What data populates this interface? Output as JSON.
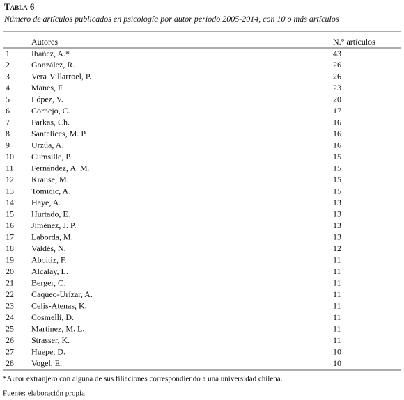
{
  "header": {
    "title": "Tabla 6",
    "subtitle": "Número de artículos publicados en psicología por autor periodo 2005-2014, con 10 o más artículos"
  },
  "table": {
    "columns": [
      "Autores",
      "N.° artículos"
    ],
    "rows": [
      [
        1,
        "Ibáñez, A.*",
        43
      ],
      [
        2,
        "González, R.",
        26
      ],
      [
        3,
        "Vera-Villarroel, P.",
        26
      ],
      [
        4,
        "Manes, F.",
        23
      ],
      [
        5,
        "López, V.",
        20
      ],
      [
        6,
        "Cornejo, C.",
        17
      ],
      [
        7,
        "Farkas, Ch.",
        16
      ],
      [
        8,
        "Santelices, M. P.",
        16
      ],
      [
        9,
        "Urzúa, A.",
        16
      ],
      [
        10,
        "Cumsille, P.",
        15
      ],
      [
        11,
        "Fernández, A. M.",
        15
      ],
      [
        12,
        "Krause, M.",
        15
      ],
      [
        13,
        "Tomicic, A.",
        15
      ],
      [
        14,
        "Haye, A.",
        13
      ],
      [
        15,
        "Hurtado, E.",
        13
      ],
      [
        16,
        "Jiménez, J. P.",
        13
      ],
      [
        17,
        "Laborda, M.",
        13
      ],
      [
        18,
        "Valdés, N.",
        12
      ],
      [
        19,
        "Aboitiz, F.",
        11
      ],
      [
        20,
        "Alcalay, L.",
        11
      ],
      [
        21,
        "Berger, C.",
        11
      ],
      [
        22,
        "Caqueo-Urízar, A.",
        11
      ],
      [
        23,
        "Celis-Atenas, K.",
        11
      ],
      [
        24,
        "Cosmelli, D.",
        11
      ],
      [
        25,
        "Martínez, M. L.",
        11
      ],
      [
        26,
        "Strasser, K.",
        11
      ],
      [
        27,
        "Huepe, D.",
        10
      ],
      [
        28,
        "Vogel, E.",
        10
      ]
    ]
  },
  "footnote": "*Autor extranjero con alguna de sus filiaciones correspondiendo a una universidad chilena.",
  "source": "Fuente: elaboración propia"
}
